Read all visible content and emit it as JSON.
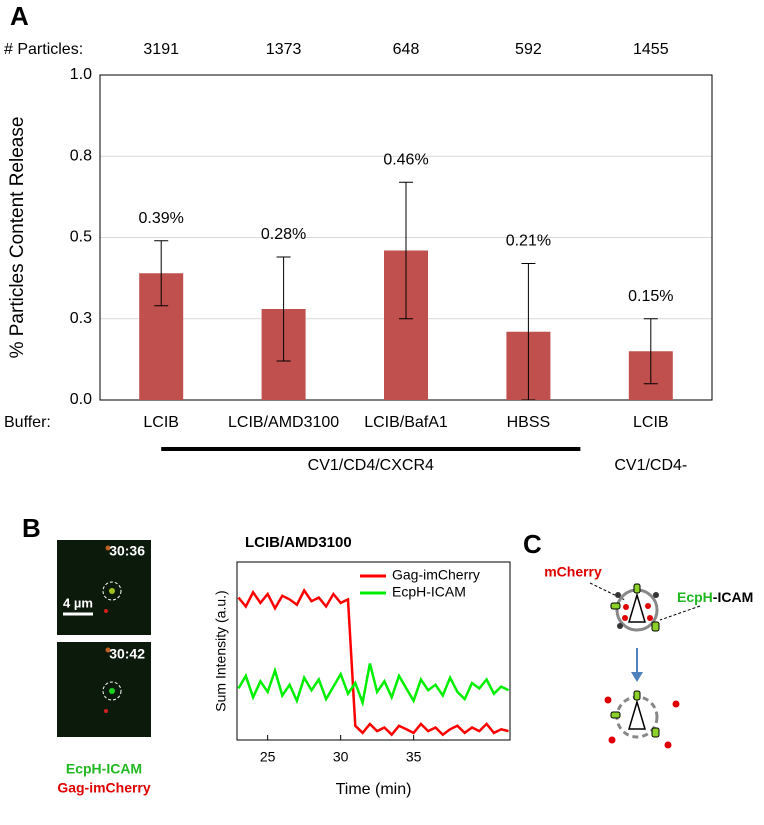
{
  "panel_labels": [
    "A",
    "B",
    "C"
  ],
  "chart_data": [
    {
      "type": "bar",
      "y_label": "% Particles Content Release",
      "particles_label": "# Particles:",
      "particle_counts": [
        3191,
        1373,
        648,
        592,
        1455
      ],
      "buffer_label": "Buffer:",
      "categories": [
        "LCIB",
        "LCIB/AMD3100",
        "LCIB/BafA1",
        "HBSS",
        "LCIB"
      ],
      "values": [
        0.39,
        0.28,
        0.46,
        0.21,
        0.15
      ],
      "value_labels": [
        "0.39%",
        "0.28%",
        "0.46%",
        "0.21%",
        "0.15%"
      ],
      "errors": [
        0.1,
        0.16,
        0.21,
        0.21,
        0.1
      ],
      "groups": [
        "CV1/CD4/CXCR4",
        "CV1/CD4-"
      ],
      "color": "#c0504d",
      "ylim": [
        0,
        1
      ],
      "yticks": [
        {
          "value": 0,
          "label": "0.0"
        },
        {
          "value": 0.25,
          "label": "0.3"
        },
        {
          "value": 0.5,
          "label": "0.5"
        },
        {
          "value": 0.75,
          "label": "0.8"
        },
        {
          "value": 1,
          "label": "1.0"
        }
      ],
      "grid": true
    },
    {
      "type": "line",
      "title": "LCIB/AMD3100",
      "x_label": "Time (min)",
      "y_label": "Sum Intensity (a.u.)",
      "x": [
        23,
        23.5,
        24,
        24.5,
        25,
        25.5,
        26,
        26.5,
        27,
        27.5,
        28,
        28.5,
        29,
        29.5,
        30,
        30.5,
        31,
        31.5,
        32,
        32.5,
        33,
        33.5,
        34,
        34.5,
        35,
        35.5,
        36,
        36.5,
        37,
        37.5,
        38,
        38.5,
        39,
        39.5,
        40,
        40.5,
        41,
        41.5
      ],
      "series": [
        {
          "name": "Gag-imCherry",
          "color": "#ff0000",
          "values": [
            8.0,
            7.5,
            8.3,
            7.7,
            8.2,
            7.4,
            8.1,
            7.9,
            7.6,
            8.4,
            7.8,
            8.0,
            7.5,
            8.2,
            7.7,
            7.9,
            0.8,
            0.4,
            0.9,
            0.5,
            0.7,
            0.3,
            0.8,
            0.6,
            0.4,
            0.9,
            0.5,
            0.7,
            0.3,
            0.6,
            0.8,
            0.4,
            0.7,
            0.5,
            0.9,
            0.4,
            0.6,
            0.5
          ]
        },
        {
          "name": "EcpH-ICAM",
          "color": "#00ee00",
          "values": [
            2.9,
            3.6,
            2.4,
            3.3,
            2.7,
            3.9,
            2.5,
            3.1,
            2.2,
            3.5,
            2.8,
            3.4,
            2.3,
            3.0,
            3.7,
            2.6,
            3.2,
            2.1,
            4.3,
            2.7,
            3.3,
            2.4,
            3.6,
            2.9,
            2.2,
            3.4,
            2.8,
            3.1,
            2.5,
            3.5,
            2.7,
            2.3,
            3.2,
            2.9,
            3.4,
            2.6,
            3.0,
            2.8
          ]
        }
      ],
      "xlim": [
        22.9,
        41.6
      ],
      "xticks": [
        25,
        30,
        35
      ],
      "ylim": [
        0,
        10
      ],
      "legend": "upper right"
    }
  ],
  "microscopy": {
    "timestamps": [
      "30:36",
      "30:42"
    ],
    "scale_bar": "4 µm",
    "channels": [
      "EcpH-ICAM",
      "Gag-imCherry"
    ]
  },
  "schematic": {
    "red_label": "mCherry",
    "green_label": "EcpH",
    "black_label": "-ICAM"
  }
}
